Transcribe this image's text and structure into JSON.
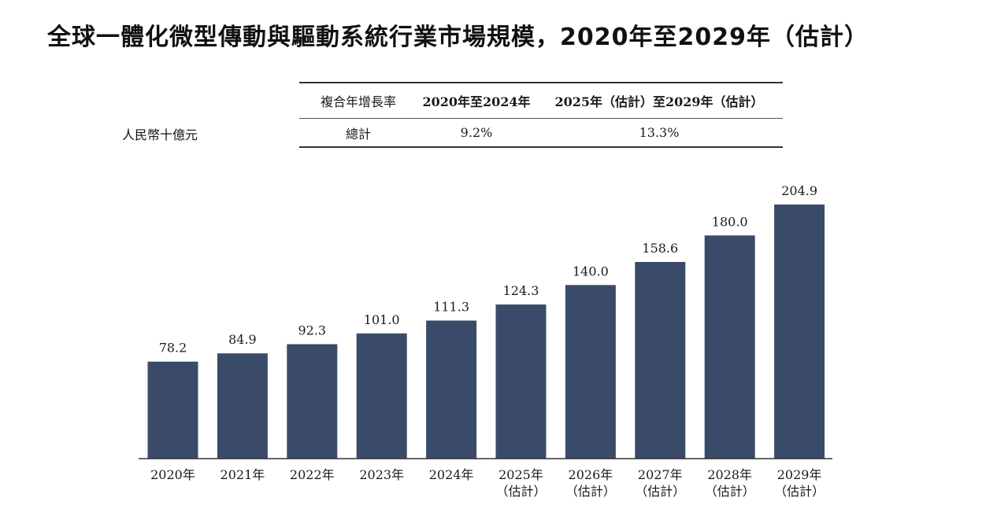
{
  "title": "全球一體化微型傳動與驅動系統行業市場規模，2020年至2029年（估計）",
  "unit_label": "人民幣十億元",
  "cagr_table": {
    "header": [
      "複合年增長率",
      "2020年至2024年",
      "2025年（估計）至2029年（估計）"
    ],
    "row": [
      "總計",
      "9.2%",
      "13.3%"
    ]
  },
  "colors": {
    "bar": "#3a4b6a",
    "axis": "#333333"
  },
  "chart_data": {
    "type": "bar",
    "categories": [
      [
        "2020年"
      ],
      [
        "2021年"
      ],
      [
        "2022年"
      ],
      [
        "2023年"
      ],
      [
        "2024年"
      ],
      [
        "2025年",
        "（估計）"
      ],
      [
        "2026年",
        "（估計）"
      ],
      [
        "2027年",
        "（估計）"
      ],
      [
        "2028年",
        "（估計）"
      ],
      [
        "2029年",
        "（估計）"
      ]
    ],
    "values": [
      78.2,
      84.9,
      92.3,
      101.0,
      111.3,
      124.3,
      140.0,
      158.6,
      180.0,
      204.9
    ],
    "value_labels": [
      "78.2",
      "84.9",
      "92.3",
      "101.0",
      "111.3",
      "124.3",
      "140.0",
      "158.6",
      "180.0",
      "204.9"
    ],
    "ylim": [
      0,
      204.9
    ],
    "grid": false,
    "legend": "none"
  }
}
